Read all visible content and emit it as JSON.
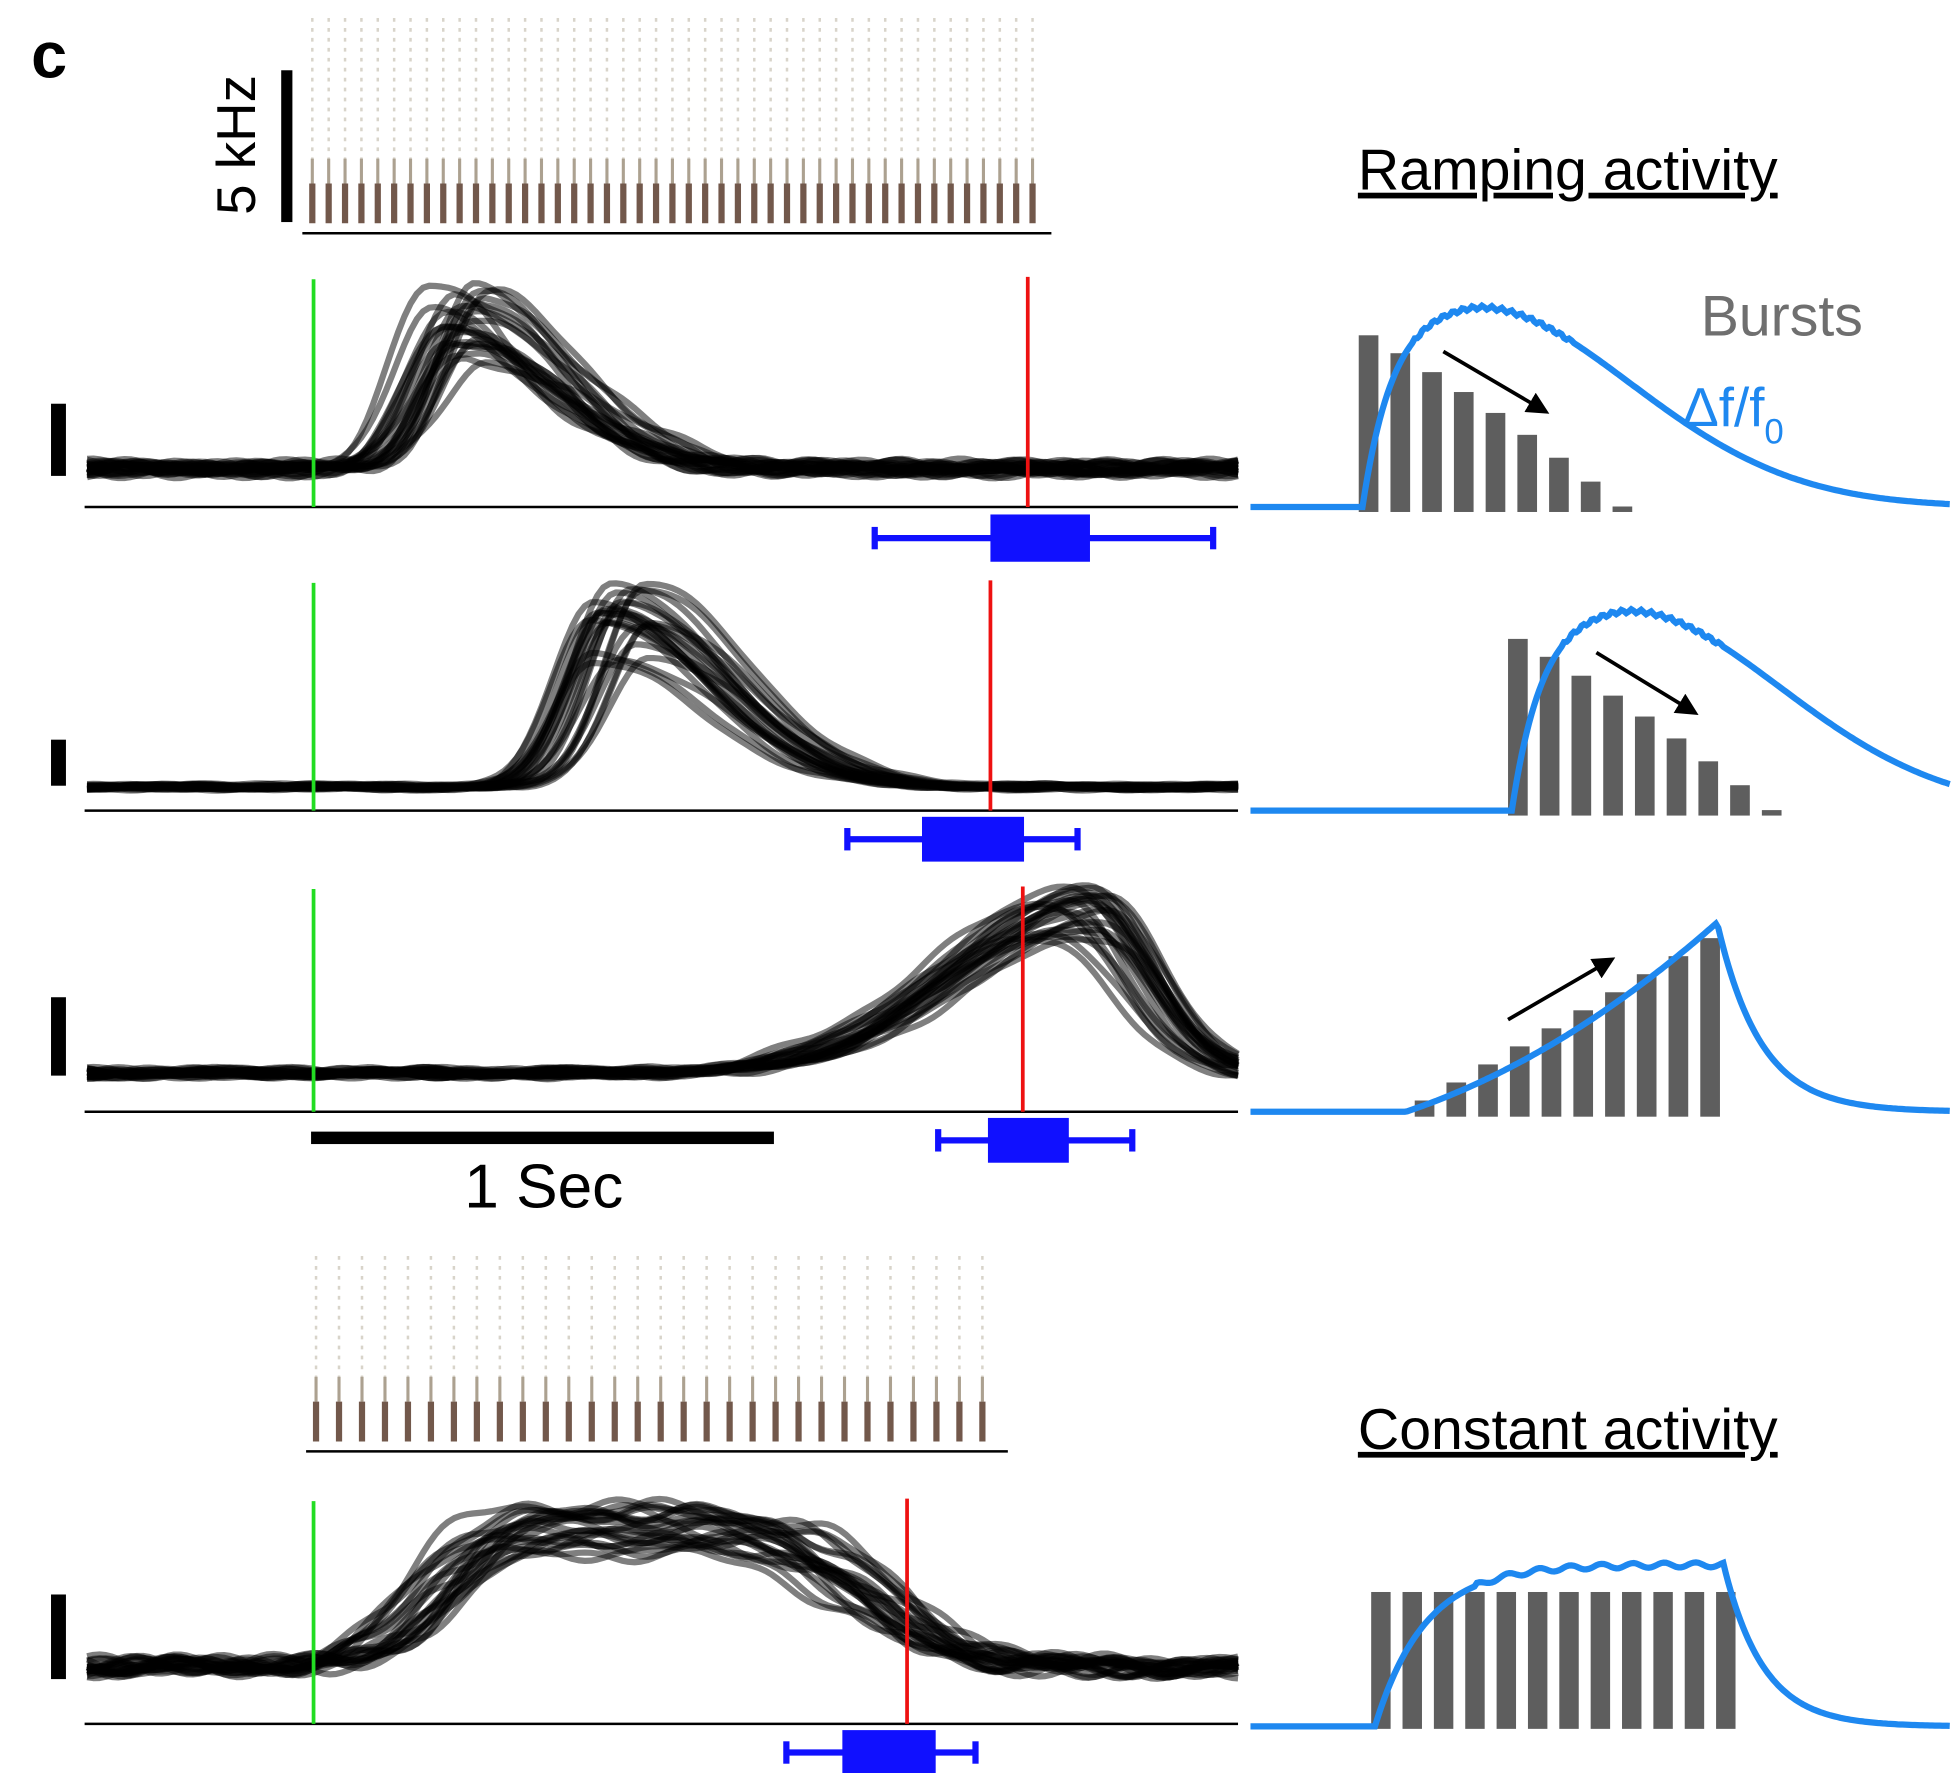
{
  "panel_label": "c",
  "left": {
    "frequency_scale": "5 kHz",
    "time_scale": "1 Sec"
  },
  "right": {
    "ramping_title": "Ramping activity",
    "legend": {
      "bursts": "Bursts",
      "dff": "Δf/f",
      "dff_subscript": "0"
    },
    "constant_title": "Constant activity"
  }
}
